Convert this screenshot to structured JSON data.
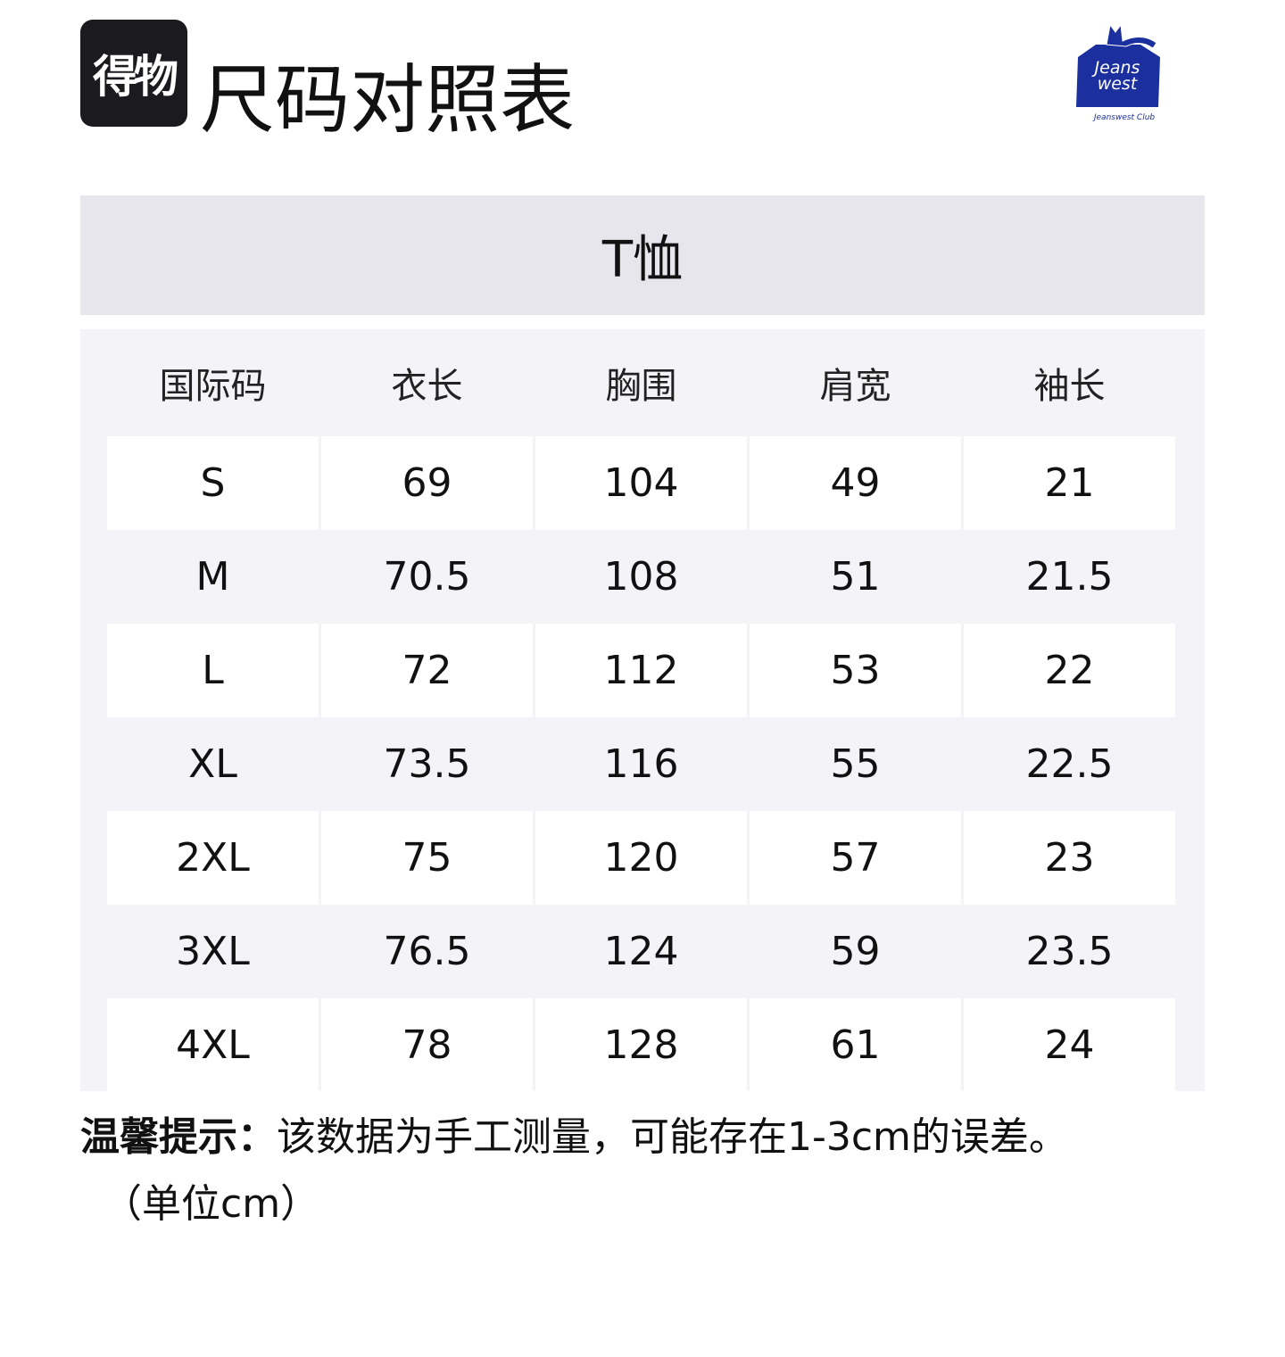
{
  "brand_badge": "得物",
  "page_title": "尺码对照表",
  "logo": {
    "text": "Jeans west",
    "sub": "Jeanswest Club",
    "color": "#1b2f9e"
  },
  "table": {
    "title": "T恤",
    "headers": [
      "国际码",
      "衣长",
      "胸围",
      "肩宽",
      "袖长"
    ],
    "rows": [
      [
        "S",
        "69",
        "104",
        "49",
        "21"
      ],
      [
        "M",
        "70.5",
        "108",
        "51",
        "21.5"
      ],
      [
        "L",
        "72",
        "112",
        "53",
        "22"
      ],
      [
        "XL",
        "73.5",
        "116",
        "55",
        "22.5"
      ],
      [
        "2XL",
        "75",
        "120",
        "57",
        "23"
      ],
      [
        "3XL",
        "76.5",
        "124",
        "59",
        "23.5"
      ],
      [
        "4XL",
        "78",
        "128",
        "61",
        "24"
      ]
    ]
  },
  "note": {
    "label": "温馨提示：",
    "text": "该数据为手工测量，可能存在1-3cm的误差。",
    "unit": "（单位cm）"
  }
}
